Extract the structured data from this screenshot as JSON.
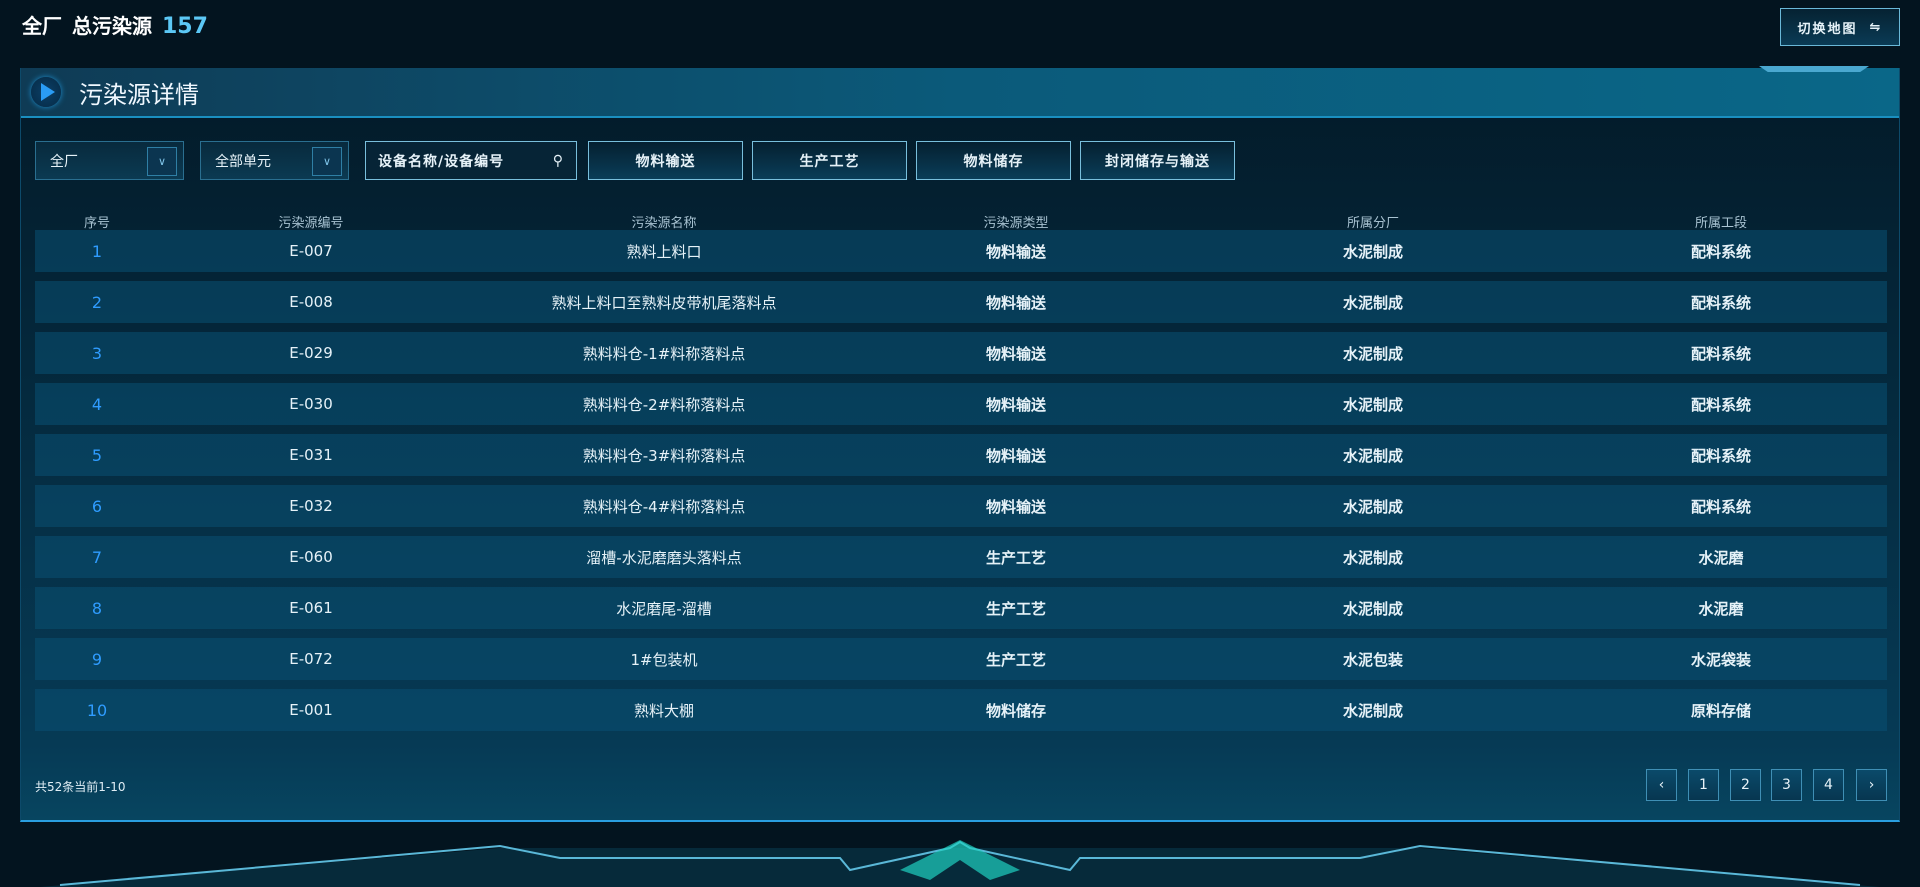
{
  "header": {
    "scope": "全厂",
    "label": "总污染源",
    "total": "157",
    "switch_map": "切换地图",
    "switch_icon": "swap-arrows-icon"
  },
  "panel": {
    "title": "污染源详情"
  },
  "filters": {
    "factory": "全厂",
    "unit": "全部单元",
    "search_placeholder": "设备名称/设备编号",
    "type_buttons": [
      "物料输送",
      "生产工艺",
      "物料储存",
      "封闭储存与输送"
    ]
  },
  "table": {
    "columns": [
      "序号",
      "污染源编号",
      "污染源名称",
      "污染源类型",
      "所属分厂",
      "所属工段"
    ],
    "rows": [
      [
        "1",
        "E-007",
        "熟料上料口",
        "物料输送",
        "水泥制成",
        "配料系统"
      ],
      [
        "2",
        "E-008",
        "熟料上料口至熟料皮带机尾落料点",
        "物料输送",
        "水泥制成",
        "配料系统"
      ],
      [
        "3",
        "E-029",
        "熟料料仓-1#料称落料点",
        "物料输送",
        "水泥制成",
        "配料系统"
      ],
      [
        "4",
        "E-030",
        "熟料料仓-2#料称落料点",
        "物料输送",
        "水泥制成",
        "配料系统"
      ],
      [
        "5",
        "E-031",
        "熟料料仓-3#料称落料点",
        "物料输送",
        "水泥制成",
        "配料系统"
      ],
      [
        "6",
        "E-032",
        "熟料料仓-4#料称落料点",
        "物料输送",
        "水泥制成",
        "配料系统"
      ],
      [
        "7",
        "E-060",
        "溜槽-水泥磨磨头落料点",
        "生产工艺",
        "水泥制成",
        "水泥磨"
      ],
      [
        "8",
        "E-061",
        "水泥磨尾-溜槽",
        "生产工艺",
        "水泥制成",
        "水泥磨"
      ],
      [
        "9",
        "E-072",
        "1#包装机",
        "生产工艺",
        "水泥包装",
        "水泥袋装"
      ],
      [
        "10",
        "E-001",
        "熟料大棚",
        "物料储存",
        "水泥制成",
        "原料存储"
      ]
    ]
  },
  "pagination": {
    "summary": "共52条当前1-10",
    "prev": "‹",
    "next": "›",
    "pages": [
      "1",
      "2",
      "3",
      "4"
    ]
  },
  "colors": {
    "accent": "#5cc8f5",
    "index": "#2f9cff",
    "background": "#03141f"
  }
}
